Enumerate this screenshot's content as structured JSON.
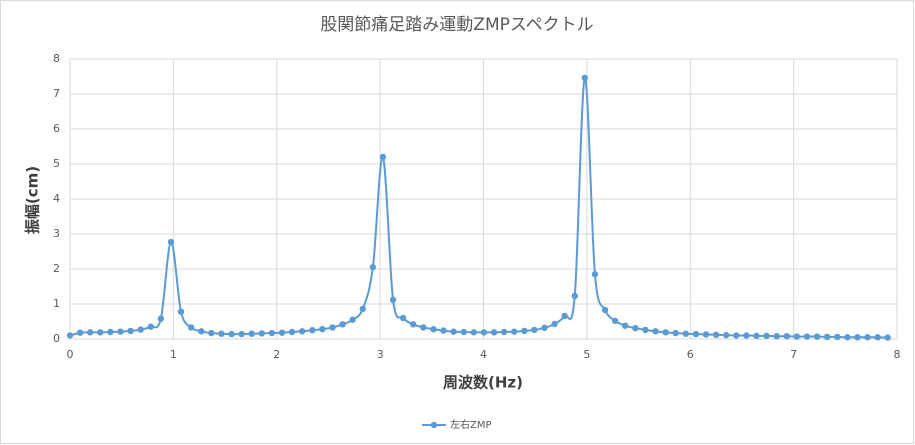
{
  "chart_data": {
    "type": "line",
    "title": "股関節痛足踏み運動ZMPスペクトル",
    "x_label": "周波数(Hz)",
    "y_label": "振幅(cm)",
    "x": [
      0,
      0.098,
      0.195,
      0.293,
      0.391,
      0.488,
      0.586,
      0.684,
      0.781,
      0.879,
      0.977,
      1.074,
      1.172,
      1.27,
      1.367,
      1.465,
      1.563,
      1.66,
      1.758,
      1.855,
      1.953,
      2.051,
      2.148,
      2.246,
      2.344,
      2.441,
      2.539,
      2.637,
      2.734,
      2.832,
      2.93,
      3.027,
      3.125,
      3.223,
      3.32,
      3.418,
      3.516,
      3.613,
      3.711,
      3.809,
      3.906,
      4.004,
      4.102,
      4.199,
      4.297,
      4.395,
      4.492,
      4.59,
      4.688,
      4.785,
      4.883,
      4.98,
      5.078,
      5.176,
      5.273,
      5.371,
      5.469,
      5.566,
      5.664,
      5.762,
      5.859,
      5.957,
      6.055,
      6.152,
      6.25,
      6.348,
      6.445,
      6.543,
      6.641,
      6.738,
      6.836,
      6.934,
      7.031,
      7.129,
      7.227,
      7.324,
      7.422,
      7.52,
      7.617,
      7.715,
      7.813,
      7.91
    ],
    "series": [
      {
        "name": "左右ZMP",
        "color": "#5b9bd5",
        "values": [
          0.1,
          0.18,
          0.19,
          0.19,
          0.2,
          0.21,
          0.23,
          0.27,
          0.35,
          0.58,
          2.77,
          0.78,
          0.33,
          0.22,
          0.17,
          0.15,
          0.14,
          0.14,
          0.15,
          0.16,
          0.17,
          0.18,
          0.2,
          0.22,
          0.25,
          0.28,
          0.33,
          0.42,
          0.55,
          0.86,
          2.05,
          5.2,
          1.12,
          0.6,
          0.42,
          0.33,
          0.28,
          0.24,
          0.21,
          0.2,
          0.19,
          0.19,
          0.19,
          0.2,
          0.21,
          0.23,
          0.26,
          0.32,
          0.43,
          0.66,
          1.23,
          7.46,
          1.85,
          0.83,
          0.52,
          0.38,
          0.31,
          0.26,
          0.22,
          0.19,
          0.17,
          0.15,
          0.14,
          0.13,
          0.12,
          0.11,
          0.1,
          0.1,
          0.09,
          0.09,
          0.08,
          0.08,
          0.07,
          0.07,
          0.07,
          0.06,
          0.06,
          0.05,
          0.05,
          0.05,
          0.05,
          0.04
        ]
      }
    ],
    "xlim": [
      0,
      8
    ],
    "ylim": [
      0,
      8
    ],
    "xticks": [
      0,
      1,
      2,
      3,
      4,
      5,
      6,
      7,
      8
    ],
    "yticks": [
      0,
      1,
      2,
      3,
      4,
      5,
      6,
      7,
      8
    ],
    "grid": true,
    "legend": "bottom"
  }
}
